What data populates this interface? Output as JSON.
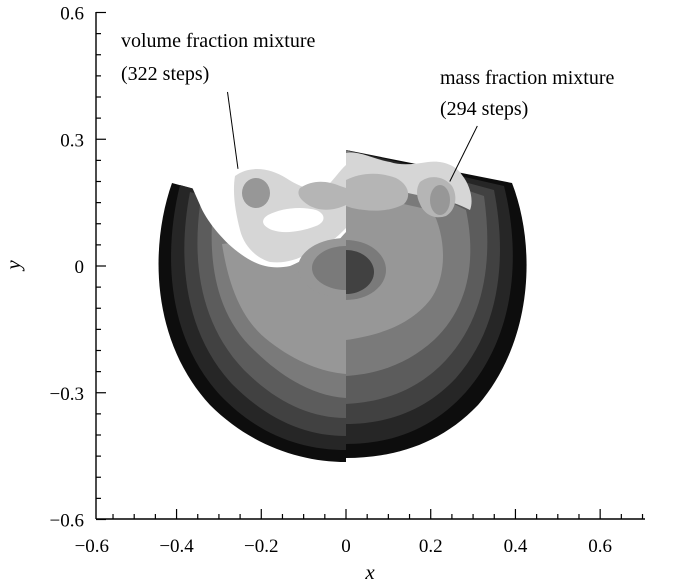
{
  "chart_data": {
    "type": "heatmap",
    "title": "",
    "xlabel": "x",
    "ylabel": "y",
    "xlim": [
      -0.6,
      0.7
    ],
    "ylim": [
      -0.6,
      0.6
    ],
    "xticks": [
      -0.6,
      -0.4,
      -0.2,
      0,
      0.2,
      0.4,
      0.6
    ],
    "xtick_labels": [
      "−0.6",
      "−0.4",
      "−0.2",
      "0",
      "0.2",
      "0.4",
      "0.6"
    ],
    "yticks": [
      -0.6,
      -0.3,
      0,
      0.3,
      0.6
    ],
    "ytick_labels": [
      "−0.6",
      "−0.3",
      "0",
      "0.3",
      "0.6"
    ],
    "colormap": [
      "#ffffff",
      "#d6d6d6",
      "#b5b5b5",
      "#979797",
      "#7a7a7a",
      "#5c5c5c",
      "#414141",
      "#262626",
      "#0d0d0d"
    ],
    "grid": false,
    "annotations": [
      {
        "lines": [
          "volume fraction mixture",
          "(322 steps)"
        ],
        "pointer_from": [
          -0.275,
          0.245
        ],
        "pointer_to": [
          -0.255,
          0.23
        ]
      },
      {
        "lines": [
          "mass fraction mixture",
          "(294 steps)"
        ],
        "pointer_from": [
          0.31,
          0.28
        ],
        "pointer_to": [
          0.245,
          0.2
        ]
      }
    ]
  }
}
